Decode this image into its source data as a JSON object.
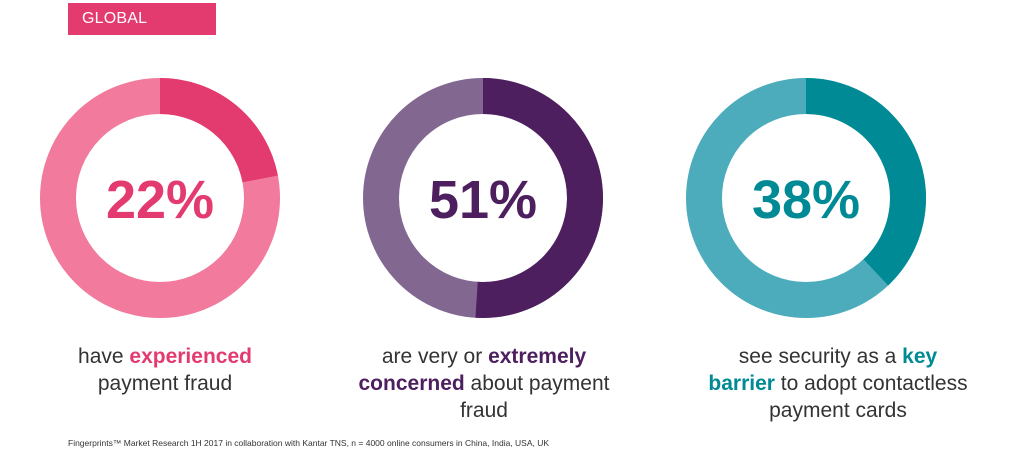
{
  "tag": {
    "label": "GLOBAL"
  },
  "chart_data": [
    {
      "type": "pie",
      "value": 22,
      "value_label": "22%",
      "colors": {
        "highlight": "#e33a6f",
        "remainder": "#f17a9d",
        "text": "#e33a6f"
      },
      "caption": {
        "pre": "have ",
        "strong": "experienced",
        "post": "payment fraud"
      }
    },
    {
      "type": "pie",
      "value": 51,
      "value_label": "51%",
      "colors": {
        "highlight": "#4d1f5e",
        "remainder": "#826891",
        "text": "#4d1f5e"
      },
      "caption": {
        "pre": "are very or ",
        "strong": "extremely concerned",
        "post": "about payment fraud"
      }
    },
    {
      "type": "pie",
      "value": 38,
      "value_label": "38%",
      "colors": {
        "highlight": "#008a95",
        "remainder": "#4cacbb",
        "text": "#008a95"
      },
      "caption": {
        "pre": "see security as a ",
        "strong": "key barrier",
        "post": "to adopt contactless payment cards"
      }
    }
  ],
  "footnote": "Fingerprints™ Market Research 1H 2017 in collaboration with Kantar TNS, n = 4000 online consumers in China, India, USA, UK"
}
